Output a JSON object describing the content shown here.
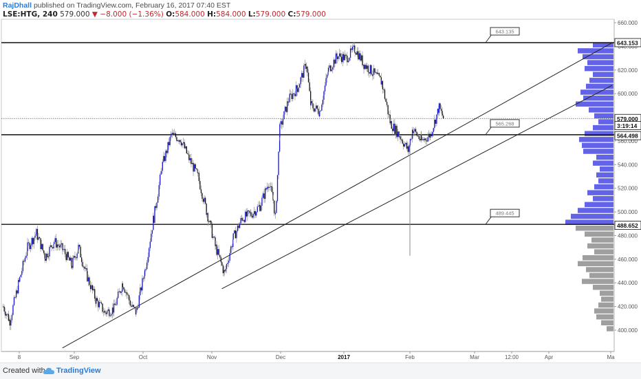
{
  "header": {
    "author": "RajDhall",
    "published": "published on TradingView.com, February 16, 2017 07:40 EST"
  },
  "ohlc": {
    "symbol": "LSE:HTG, 240",
    "last": "579.000",
    "change": "▼ −8.000 (−1.36%)",
    "open_label": "O:",
    "open": "584.000",
    "high_label": "H:",
    "high": "584.000",
    "low_label": "L:",
    "low": "579.000",
    "close_label": "C:",
    "close": "579.000"
  },
  "footer": {
    "created_with": "Created with",
    "brand": "TradingView"
  },
  "colors": {
    "up_body": "#1515c8",
    "down_body": "#111111",
    "wick": "#909090",
    "profile_blue": "#5b5be6",
    "profile_gray": "#9a9a9a",
    "trend": "#222222"
  },
  "chart_data": {
    "type": "candlestick",
    "ylim": [
      395,
      665
    ],
    "y_ticks": [
      "660.000",
      "640.000",
      "620.000",
      "600.000",
      "580.000",
      "560.000",
      "540.000",
      "520.000",
      "500.000",
      "480.000",
      "460.000",
      "440.000",
      "420.000",
      "400.000"
    ],
    "y_tick_values": [
      660,
      640,
      620,
      600,
      580,
      560,
      540,
      520,
      500,
      480,
      460,
      440,
      420,
      400
    ],
    "x_ticks": [
      "8",
      "Sep",
      "Oct",
      "Nov",
      "Dec",
      "2017",
      "Feb",
      "Mar",
      "12:00",
      "Apr",
      "Ma"
    ],
    "price_labels": [
      {
        "label": "643.153",
        "value": 643.153,
        "style": "black"
      },
      {
        "label": "579.000",
        "value": 579,
        "style": "black"
      },
      {
        "label": "3:19:14",
        "value": 573,
        "style": "black"
      },
      {
        "label": "564.498",
        "value": 564.498,
        "style": "black"
      },
      {
        "label": "488.652",
        "value": 488.652,
        "style": "black"
      }
    ],
    "horizontal_levels": [
      {
        "value": 643.135,
        "label": "643.135"
      },
      {
        "value": 565.268,
        "label": "565.268"
      },
      {
        "value": 489.445,
        "label": "489.445"
      }
    ],
    "dotted_level": 579,
    "trendlines": [
      {
        "from": {
          "t": "Aug 28",
          "v": 385
        },
        "to": {
          "t": "Apr 20",
          "v": 643
        }
      },
      {
        "from": {
          "t": "Nov 8",
          "v": 435
        },
        "to": {
          "t": "Apr 20",
          "v": 607
        }
      }
    ],
    "price_path": [
      [
        "Aug 1",
        420
      ],
      [
        "Aug 4",
        408
      ],
      [
        "Aug 8",
        440
      ],
      [
        "Aug 12",
        470
      ],
      [
        "Aug 16",
        482
      ],
      [
        "Aug 20",
        462
      ],
      [
        "Aug 24",
        475
      ],
      [
        "Aug 28",
        468
      ],
      [
        "Sep 1",
        455
      ],
      [
        "Sep 4",
        470
      ],
      [
        "Sep 8",
        445
      ],
      [
        "Sep 12",
        425
      ],
      [
        "Sep 16",
        415
      ],
      [
        "Sep 20",
        418
      ],
      [
        "Sep 24",
        440
      ],
      [
        "Sep 28",
        420
      ],
      [
        "Sep 30",
        415
      ],
      [
        "Oct 4",
        450
      ],
      [
        "Oct 8",
        495
      ],
      [
        "Oct 12",
        540
      ],
      [
        "Oct 16",
        565
      ],
      [
        "Oct 20",
        562
      ],
      [
        "Oct 24",
        545
      ],
      [
        "Oct 28",
        530
      ],
      [
        "Nov 1",
        500
      ],
      [
        "Nov 5",
        470
      ],
      [
        "Nov 9",
        448
      ],
      [
        "Nov 13",
        478
      ],
      [
        "Nov 17",
        495
      ],
      [
        "Nov 21",
        498
      ],
      [
        "Nov 25",
        505
      ],
      [
        "Nov 29",
        525
      ],
      [
        "Dec 1",
        510
      ],
      [
        "Dec 2",
        495
      ],
      [
        "Dec 4",
        570
      ],
      [
        "Dec 8",
        595
      ],
      [
        "Dec 12",
        605
      ],
      [
        "Dec 16",
        625
      ],
      [
        "Dec 18",
        590
      ],
      [
        "Dec 22",
        585
      ],
      [
        "Dec 26",
        620
      ],
      [
        "Dec 30",
        632
      ],
      [
        "Jan 3",
        630
      ],
      [
        "Jan 7",
        638
      ],
      [
        "Jan 11",
        625
      ],
      [
        "Jan 15",
        618
      ],
      [
        "Jan 19",
        610
      ],
      [
        "Jan 23",
        575
      ],
      [
        "Jan 27",
        565
      ],
      [
        "Jan 31",
        552
      ],
      [
        "Feb 2",
        570
      ],
      [
        "Feb 6",
        560
      ],
      [
        "Feb 10",
        565
      ],
      [
        "Feb 14",
        588
      ],
      [
        "Feb 16",
        579
      ]
    ],
    "outlier_wick": {
      "t": "Feb 1",
      "low": 463,
      "high": 560
    },
    "volume_profile": [
      [
        641,
        30,
        "b"
      ],
      [
        636,
        52,
        "b"
      ],
      [
        631,
        45,
        "b"
      ],
      [
        626,
        38,
        "b"
      ],
      [
        621,
        42,
        "b"
      ],
      [
        616,
        30,
        "b"
      ],
      [
        611,
        35,
        "b"
      ],
      [
        606,
        40,
        "b"
      ],
      [
        601,
        48,
        "b"
      ],
      [
        596,
        44,
        "b"
      ],
      [
        591,
        55,
        "b"
      ],
      [
        586,
        36,
        "b"
      ],
      [
        581,
        28,
        "b"
      ],
      [
        576,
        22,
        "b"
      ],
      [
        571,
        30,
        "b"
      ],
      [
        566,
        42,
        "b"
      ],
      [
        561,
        50,
        "b"
      ],
      [
        556,
        46,
        "b"
      ],
      [
        551,
        44,
        "b"
      ],
      [
        546,
        25,
        "b"
      ],
      [
        541,
        30,
        "b"
      ],
      [
        536,
        20,
        "b"
      ],
      [
        531,
        25,
        "b"
      ],
      [
        526,
        22,
        "b"
      ],
      [
        521,
        28,
        "b"
      ],
      [
        516,
        38,
        "b"
      ],
      [
        511,
        30,
        "b"
      ],
      [
        506,
        42,
        "b"
      ],
      [
        501,
        52,
        "b"
      ],
      [
        496,
        62,
        "b"
      ],
      [
        491,
        70,
        "b"
      ],
      [
        486,
        55,
        "g"
      ],
      [
        481,
        42,
        "g"
      ],
      [
        476,
        32,
        "g"
      ],
      [
        471,
        38,
        "g"
      ],
      [
        466,
        28,
        "g"
      ],
      [
        461,
        45,
        "g"
      ],
      [
        456,
        52,
        "g"
      ],
      [
        451,
        40,
        "g"
      ],
      [
        446,
        35,
        "g"
      ],
      [
        441,
        46,
        "g"
      ],
      [
        436,
        30,
        "g"
      ],
      [
        431,
        20,
        "g"
      ],
      [
        426,
        18,
        "g"
      ],
      [
        421,
        22,
        "g"
      ],
      [
        416,
        28,
        "g"
      ],
      [
        411,
        25,
        "g"
      ],
      [
        406,
        18,
        "g"
      ],
      [
        401,
        10,
        "g"
      ]
    ]
  }
}
